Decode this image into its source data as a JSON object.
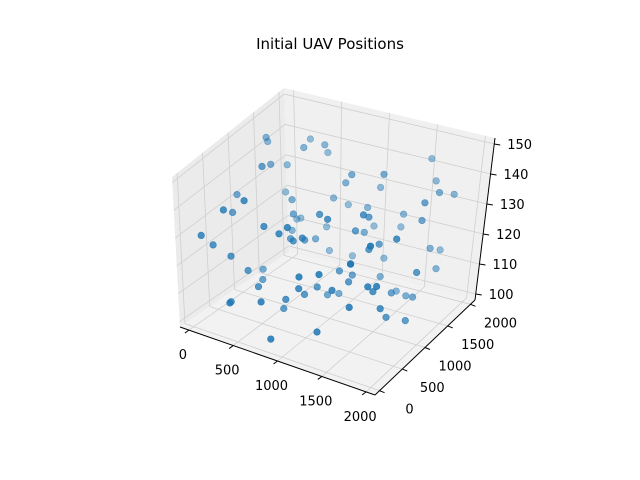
{
  "chart_data": {
    "type": "scatter",
    "title": "Initial UAV Positions",
    "xlabel": "",
    "ylabel": "",
    "zlabel": "",
    "grid": true,
    "xlim": [
      -100,
      2100
    ],
    "ylim": [
      -100,
      2100
    ],
    "zlim": [
      98,
      152
    ],
    "x_ticks": [
      0,
      500,
      1000,
      1500,
      2000
    ],
    "y_ticks": [
      0,
      500,
      1000,
      1500,
      2000
    ],
    "z_ticks": [
      100,
      110,
      120,
      130,
      140,
      150
    ],
    "x_tick_labels": [
      "0",
      "500",
      "1000",
      "1500",
      "2000"
    ],
    "y_tick_labels": [
      "0",
      "500",
      "1000",
      "1500",
      "2000"
    ],
    "z_tick_labels": [
      "100",
      "110",
      "120",
      "130",
      "140",
      "150"
    ],
    "marker_color": "#1f77b4",
    "series": [
      {
        "points": [
          [
            120,
            250,
            125
          ],
          [
            300,
            180,
            140
          ],
          [
            520,
            420,
            112
          ],
          [
            820,
            610,
            128
          ],
          [
            1050,
            300,
            118
          ],
          [
            1350,
            900,
            132
          ],
          [
            1600,
            1500,
            104
          ],
          [
            1900,
            1800,
            136
          ],
          [
            200,
            1200,
            150
          ],
          [
            450,
            1600,
            146
          ],
          [
            700,
            1900,
            122
          ],
          [
            950,
            1400,
            138
          ],
          [
            1200,
            1750,
            110
          ],
          [
            1500,
            1100,
            126
          ],
          [
            1800,
            600,
            114
          ],
          [
            1950,
            200,
            142
          ],
          [
            350,
            800,
            108
          ],
          [
            600,
            1000,
            130
          ],
          [
            850,
            50,
            102
          ],
          [
            1100,
            1250,
            144
          ],
          [
            1400,
            350,
            120
          ],
          [
            1700,
            900,
            106
          ],
          [
            1850,
            1300,
            134
          ],
          [
            250,
            1750,
            116
          ],
          [
            550,
            1300,
            148
          ],
          [
            780,
            900,
            124
          ],
          [
            1000,
            750,
            112
          ],
          [
            1250,
            550,
            140
          ],
          [
            1450,
            1650,
            128
          ],
          [
            1650,
            250,
            118
          ],
          [
            150,
            600,
            132
          ],
          [
            400,
            50,
            110
          ],
          [
            680,
            300,
            136
          ],
          [
            920,
            1100,
            104
          ],
          [
            1180,
            100,
            126
          ],
          [
            1420,
            1300,
            146
          ],
          [
            1720,
            1950,
            114
          ],
          [
            1980,
            1000,
            122
          ],
          [
            280,
            1450,
            138
          ],
          [
            520,
            1850,
            106
          ],
          [
            760,
            1500,
            130
          ],
          [
            1020,
            1850,
            118
          ],
          [
            1300,
            1500,
            108
          ],
          [
            1560,
            700,
            142
          ],
          [
            1780,
            400,
            124
          ],
          [
            90,
            1950,
            112
          ],
          [
            330,
            1050,
            144
          ],
          [
            640,
            700,
            102
          ],
          [
            880,
            250,
            136
          ],
          [
            1140,
            950,
            116
          ],
          [
            1380,
            150,
            128
          ],
          [
            1620,
            1150,
            110
          ],
          [
            1880,
            1550,
            140
          ],
          [
            210,
            400,
            104
          ],
          [
            470,
            650,
            150
          ],
          [
            730,
            1200,
            120
          ],
          [
            990,
            500,
            132
          ],
          [
            1230,
            1050,
            114
          ],
          [
            1470,
            600,
            126
          ],
          [
            1730,
            1400,
            106
          ],
          [
            1960,
            650,
            138
          ],
          [
            380,
            1350,
            118
          ],
          [
            610,
            1650,
            142
          ],
          [
            840,
            1750,
            108
          ],
          [
            1080,
            1600,
            128
          ],
          [
            1320,
            1850,
            120
          ],
          [
            1580,
            1900,
            144
          ],
          [
            1820,
            1700,
            112
          ],
          [
            60,
            850,
            134
          ],
          [
            290,
            300,
            122
          ],
          [
            560,
            150,
            146
          ],
          [
            810,
            450,
            110
          ],
          [
            1070,
            700,
            138
          ],
          [
            1330,
            800,
            116
          ],
          [
            1590,
            400,
            130
          ],
          [
            1840,
            1050,
            104
          ],
          [
            170,
            1600,
            126
          ],
          [
            430,
            1950,
            112
          ],
          [
            690,
            1450,
            148
          ],
          [
            940,
            1300,
            102
          ],
          [
            1190,
            1350,
            124
          ],
          [
            1440,
            1000,
            136
          ],
          [
            1690,
            650,
            118
          ],
          [
            1930,
            1200,
            142
          ],
          [
            240,
            1000,
            108
          ],
          [
            500,
            1150,
            132
          ],
          [
            760,
            50,
            114
          ],
          [
            1010,
            200,
            140
          ],
          [
            1270,
            250,
            106
          ],
          [
            1530,
            850,
            128
          ],
          [
            1790,
            1600,
            120
          ],
          [
            130,
            1350,
            146
          ],
          [
            390,
            450,
            116
          ],
          [
            650,
            850,
            124
          ],
          [
            910,
            650,
            110
          ],
          [
            1160,
            1700,
            134
          ],
          [
            1410,
            1650,
            102
          ],
          [
            1670,
            1850,
            138
          ],
          [
            1910,
            350,
            126
          ],
          [
            80,
            100,
            130
          ]
        ]
      }
    ]
  }
}
